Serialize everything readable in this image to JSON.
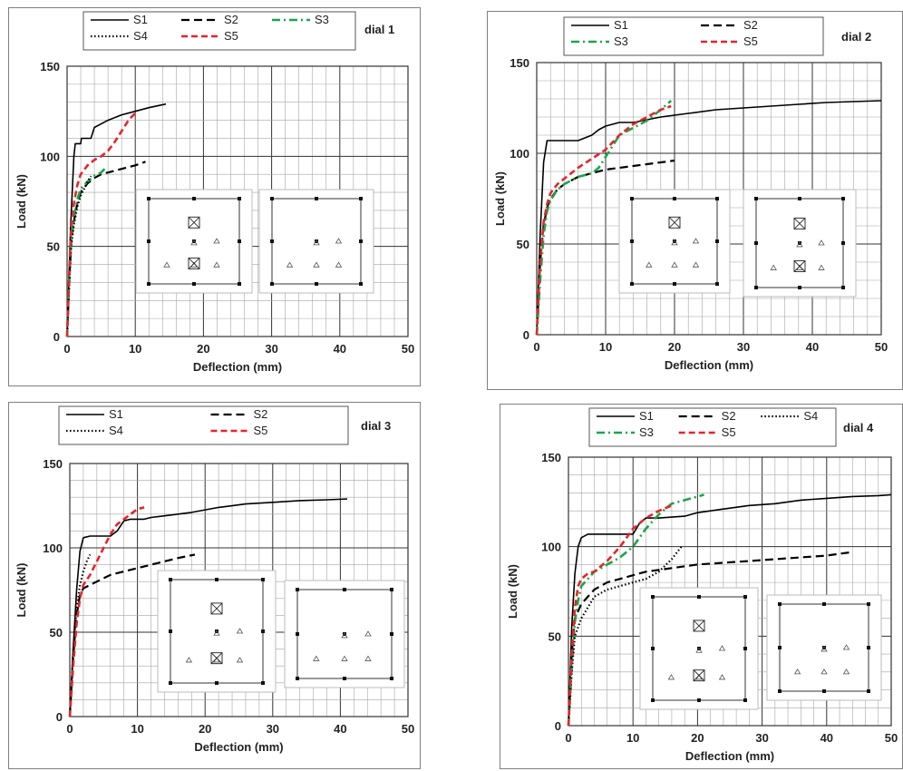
{
  "colors": {
    "S1": "#000000",
    "S2": "#000000",
    "S3": "#1aa64b",
    "S4": "#000000",
    "S5": "#e8242a",
    "grid": "#a6a6a6",
    "major_grid": "#333333"
  },
  "chart_data": [
    {
      "type": "line",
      "title": "dial 1",
      "xlabel": "Deflection (mm)",
      "ylabel": "Load (kN)",
      "xlim": [
        0,
        50
      ],
      "ylim": [
        0,
        150
      ],
      "xticks": [
        "0",
        "10",
        "20",
        "30",
        "40",
        "50"
      ],
      "yticks": [
        "0",
        "50",
        "100",
        "150"
      ],
      "legend": [
        "S1",
        "S2",
        "S3",
        "S4",
        "S5"
      ],
      "series": [
        {
          "name": "S1",
          "x": [
            0,
            0.5,
            1,
            1.2,
            2,
            2.1,
            3.5,
            4,
            5,
            6,
            8,
            10,
            12,
            14.5
          ],
          "y": [
            0,
            60,
            100,
            107,
            107,
            110,
            110,
            116,
            118,
            120,
            123,
            125,
            127,
            129
          ]
        },
        {
          "name": "S2",
          "x": [
            0,
            0.3,
            0.6,
            1,
            1.5,
            2,
            3,
            4,
            5,
            6,
            7,
            8,
            9,
            10,
            11.5
          ],
          "y": [
            0,
            30,
            52,
            64,
            74,
            80,
            85,
            88,
            90,
            91,
            92,
            93,
            94,
            95,
            97
          ]
        },
        {
          "name": "S3",
          "x": [
            0,
            0.3,
            0.6,
            1,
            1.5,
            2,
            3,
            4,
            5,
            5.5
          ],
          "y": [
            0,
            30,
            52,
            66,
            76,
            82,
            86,
            89,
            91,
            93
          ]
        },
        {
          "name": "S4",
          "x": [
            0,
            0.3,
            0.6,
            1,
            1.5,
            2,
            2.5,
            3,
            3.5
          ],
          "y": [
            0,
            28,
            50,
            62,
            72,
            78,
            82,
            86,
            89
          ]
        },
        {
          "name": "S5",
          "x": [
            0,
            0.3,
            0.6,
            1,
            1.5,
            2,
            3,
            4,
            5,
            6,
            7,
            8,
            9,
            10
          ],
          "y": [
            0,
            35,
            60,
            74,
            84,
            90,
            95,
            98,
            100,
            103,
            108,
            114,
            120,
            124
          ]
        }
      ]
    },
    {
      "type": "line",
      "title": "dial 2",
      "xlabel": "Deflection (mm)",
      "ylabel": "Load (kN)",
      "xlim": [
        0,
        50
      ],
      "ylim": [
        0,
        150
      ],
      "xticks": [
        "0",
        "10",
        "20",
        "30",
        "40",
        "50"
      ],
      "yticks": [
        "0",
        "50",
        "100",
        "150"
      ],
      "legend": [
        "S1",
        "S2",
        "S3",
        "S5"
      ],
      "series": [
        {
          "name": "S1",
          "x": [
            0,
            0.5,
            1,
            1.5,
            2,
            3,
            4,
            6,
            8,
            9,
            10,
            12,
            14,
            18,
            22,
            26,
            30,
            34,
            38,
            42,
            46,
            50
          ],
          "y": [
            0,
            55,
            95,
            107,
            107,
            107,
            107,
            107,
            110,
            113,
            115,
            117,
            117,
            120,
            122,
            124,
            125,
            126,
            127,
            128,
            128.5,
            129
          ]
        },
        {
          "name": "S2",
          "x": [
            0,
            0.5,
            1,
            1.5,
            2,
            3,
            4,
            6,
            8,
            10,
            12,
            14,
            16,
            18,
            20
          ],
          "y": [
            0,
            40,
            60,
            70,
            75,
            80,
            83,
            87,
            89,
            91,
            92,
            93,
            94,
            95,
            96
          ]
        },
        {
          "name": "S3",
          "x": [
            0,
            0.5,
            1,
            1.5,
            2,
            3,
            4,
            5,
            6,
            8,
            9,
            9.5,
            10,
            11,
            12,
            14,
            16,
            18,
            19.5
          ],
          "y": [
            0,
            30,
            55,
            68,
            74,
            80,
            83,
            85,
            87,
            89,
            92,
            95,
            98,
            104,
            110,
            114,
            118,
            124,
            129
          ]
        },
        {
          "name": "S5",
          "x": [
            0,
            0.5,
            1,
            1.5,
            2,
            3,
            4,
            5,
            6,
            8,
            10,
            12,
            14,
            16,
            18,
            19.5
          ],
          "y": [
            0,
            40,
            62,
            72,
            78,
            83,
            86,
            89,
            92,
            97,
            102,
            110,
            116,
            120,
            124,
            126
          ]
        }
      ]
    },
    {
      "type": "line",
      "title": "dial 3",
      "xlabel": "Deflection (mm)",
      "ylabel": "Load (kN)",
      "xlim": [
        0,
        50
      ],
      "ylim": [
        0,
        150
      ],
      "xticks": [
        "0",
        "10",
        "20",
        "30",
        "40",
        "50"
      ],
      "yticks": [
        "0",
        "50",
        "100",
        "150"
      ],
      "legend": [
        "S1",
        "S2",
        "S4",
        "S5"
      ],
      "series": [
        {
          "name": "S1",
          "x": [
            0,
            0.5,
            1,
            1.5,
            2,
            3,
            4,
            5,
            6,
            7,
            8,
            9,
            10,
            11,
            12,
            14,
            18,
            22,
            26,
            30,
            34,
            38,
            41
          ],
          "y": [
            0,
            40,
            75,
            98,
            106,
            107,
            107,
            107,
            107,
            110,
            116,
            117,
            117,
            117,
            118,
            119,
            121,
            124,
            126,
            127,
            128,
            128.5,
            129
          ]
        },
        {
          "name": "S2",
          "x": [
            0,
            0.5,
            1,
            1.5,
            2,
            3,
            4,
            5,
            6,
            8,
            10,
            12,
            14,
            16,
            18.5
          ],
          "y": [
            0,
            35,
            60,
            72,
            76,
            78,
            80,
            82,
            84,
            86,
            88,
            90,
            92,
            94,
            96
          ]
        },
        {
          "name": "S4",
          "x": [
            0,
            0.5,
            1,
            1.5,
            2,
            2.5,
            3
          ],
          "y": [
            0,
            38,
            64,
            78,
            86,
            92,
            96
          ]
        },
        {
          "name": "S5",
          "x": [
            0,
            0.5,
            1,
            1.5,
            2,
            3,
            4,
            5,
            6,
            7,
            8,
            9,
            10,
            11
          ],
          "y": [
            0,
            30,
            55,
            70,
            78,
            84,
            92,
            100,
            108,
            114,
            117,
            120,
            123,
            124
          ]
        }
      ]
    },
    {
      "type": "line",
      "title": "dial 4",
      "xlabel": "Deflection (mm)",
      "ylabel": "Load (kN)",
      "xlim": [
        0,
        50
      ],
      "ylim": [
        0,
        150
      ],
      "xticks": [
        "0",
        "10",
        "20",
        "30",
        "40",
        "50"
      ],
      "yticks": [
        "0",
        "50",
        "100",
        "150"
      ],
      "legend": [
        "S1",
        "S2",
        "S4",
        "S3",
        "S5"
      ],
      "series": [
        {
          "name": "S1",
          "x": [
            0,
            0.5,
            1,
            1.5,
            2,
            3,
            4,
            6,
            8,
            10,
            11,
            12,
            14,
            18,
            20,
            24,
            28,
            32,
            36,
            40,
            44,
            48,
            50
          ],
          "y": [
            0,
            55,
            85,
            100,
            105,
            107,
            107,
            107,
            107,
            107,
            113,
            116,
            116,
            117,
            119,
            121,
            123,
            124,
            126,
            127,
            128,
            128.5,
            129
          ]
        },
        {
          "name": "S2",
          "x": [
            0,
            0.5,
            1,
            2,
            3,
            4,
            6,
            8,
            10,
            12,
            16,
            20,
            24,
            28,
            32,
            36,
            40,
            44
          ],
          "y": [
            0,
            40,
            60,
            68,
            72,
            76,
            80,
            82,
            84,
            86,
            88,
            90,
            91,
            92,
            93,
            94,
            95,
            97
          ]
        },
        {
          "name": "S3",
          "x": [
            0,
            0.5,
            1,
            1.5,
            2,
            3,
            4,
            6,
            8,
            10,
            12,
            14,
            16,
            18,
            20,
            21
          ],
          "y": [
            0,
            32,
            58,
            70,
            78,
            82,
            86,
            90,
            94,
            100,
            110,
            118,
            124,
            126,
            128,
            129
          ]
        },
        {
          "name": "S4",
          "x": [
            0,
            0.5,
            1,
            2,
            3,
            4,
            6,
            8,
            10,
            12,
            14,
            16,
            17.5
          ],
          "y": [
            0,
            30,
            50,
            60,
            66,
            72,
            76,
            78,
            80,
            82,
            86,
            93,
            100
          ]
        },
        {
          "name": "S5",
          "x": [
            0,
            0.5,
            1,
            1.5,
            2,
            3,
            4,
            6,
            8,
            10,
            12,
            14,
            16
          ],
          "y": [
            0,
            40,
            66,
            78,
            82,
            85,
            86,
            92,
            100,
            110,
            116,
            120,
            123
          ]
        }
      ]
    }
  ]
}
